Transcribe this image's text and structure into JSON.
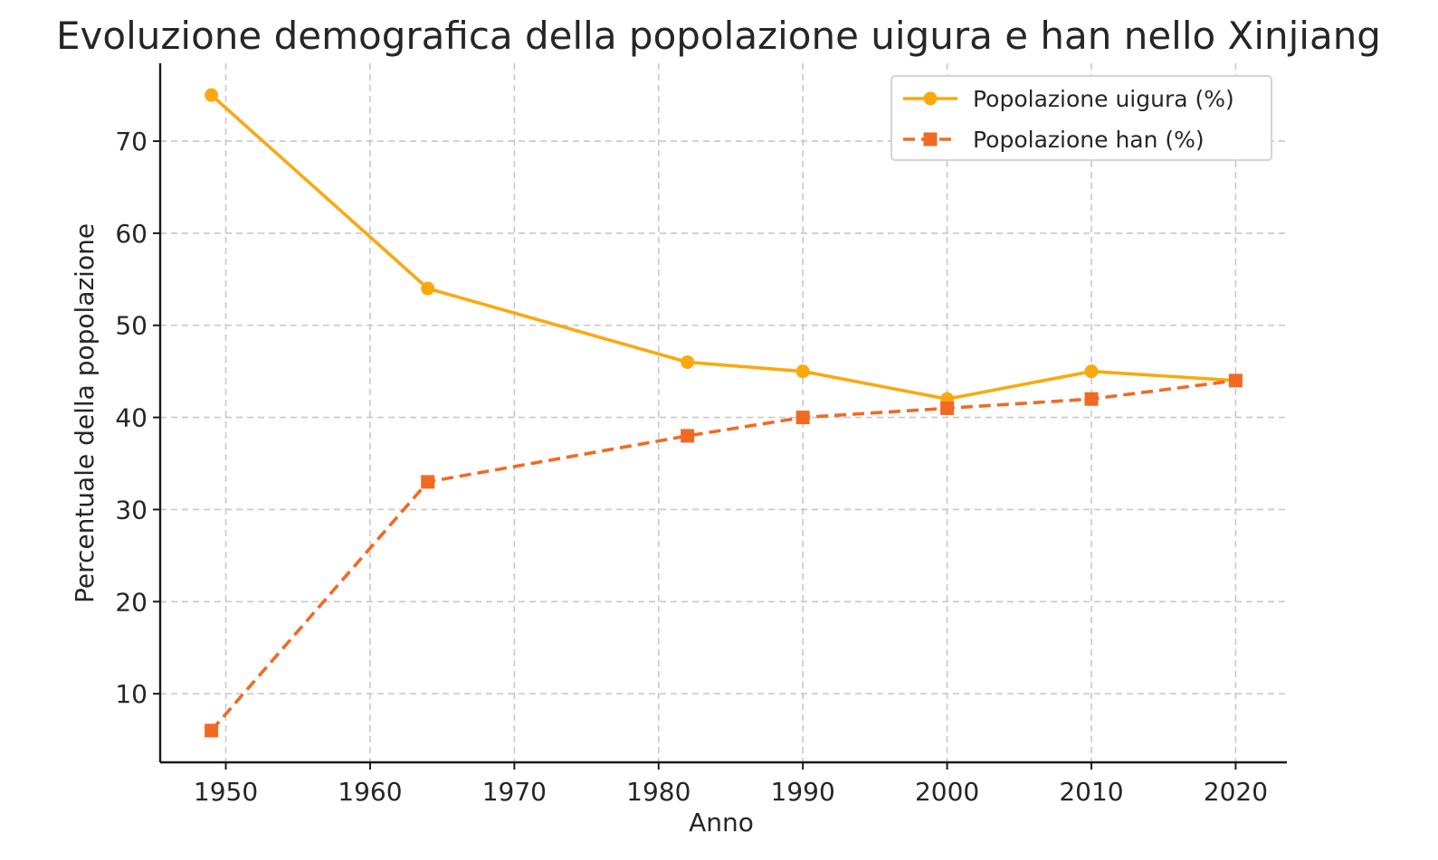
{
  "chart_data": {
    "type": "line",
    "title": "Evoluzione demografica della popolazione uigura e han nello Xinjiang",
    "xlabel": "Anno",
    "ylabel": "Percentuale della popolazione",
    "x": [
      1949,
      1964,
      1982,
      1990,
      2000,
      2010,
      2020
    ],
    "xlim": [
      1945.45,
      2023.55
    ],
    "ylim": [
      2.55,
      78.45
    ],
    "xticks": [
      1950,
      1960,
      1970,
      1980,
      1990,
      2000,
      2010,
      2020
    ],
    "yticks": [
      10,
      20,
      30,
      40,
      50,
      60,
      70
    ],
    "grid": true,
    "legend_position": "top-right",
    "series": [
      {
        "name": "Popolazione uigura (%)",
        "values": [
          75,
          54,
          46,
          45,
          42,
          45,
          44
        ],
        "color": "#F9A90F",
        "line_style": "solid",
        "marker": "circle"
      },
      {
        "name": "Popolazione han (%)",
        "values": [
          6,
          33,
          38,
          40,
          41,
          42,
          44
        ],
        "color": "#F06A24",
        "line_style": "dashed",
        "marker": "square"
      }
    ]
  }
}
